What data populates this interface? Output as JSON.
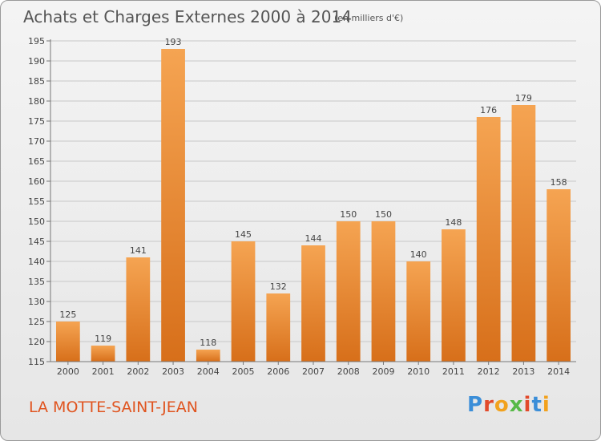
{
  "header": {
    "title": "Achats et Charges Externes 2000 à 2014",
    "subtitle": "(en milliers d'€)"
  },
  "footer": {
    "commune": "LA MOTTE-SAINT-JEAN",
    "logo_letters": [
      "P",
      "r",
      "o",
      "x",
      "i",
      "t",
      "i"
    ],
    "logo_colors": [
      "#3b8ed8",
      "#e24a2b",
      "#f2a21e",
      "#57b947",
      "#e24a2b",
      "#3b8ed8",
      "#f2a21e"
    ]
  },
  "colors": {
    "bar_light": "#f5a452",
    "bar_dark": "#d76f1a",
    "grid": "#c8c8c8",
    "axis": "#777777"
  },
  "chart_data": {
    "type": "bar",
    "title": "Achats et Charges Externes 2000 à 2014",
    "subtitle": "(en milliers d'€)",
    "xlabel": "",
    "ylabel": "",
    "categories": [
      "2000",
      "2001",
      "2002",
      "2003",
      "2004",
      "2005",
      "2006",
      "2007",
      "2008",
      "2009",
      "2010",
      "2011",
      "2012",
      "2013",
      "2014"
    ],
    "values": [
      125,
      119,
      141,
      193,
      118,
      145,
      132,
      144,
      150,
      150,
      140,
      148,
      176,
      179,
      158
    ],
    "ylim": [
      115,
      195
    ],
    "yticks": [
      115,
      120,
      125,
      130,
      135,
      140,
      145,
      150,
      155,
      160,
      165,
      170,
      175,
      180,
      185,
      190,
      195
    ],
    "grid": true,
    "legend": "none"
  }
}
